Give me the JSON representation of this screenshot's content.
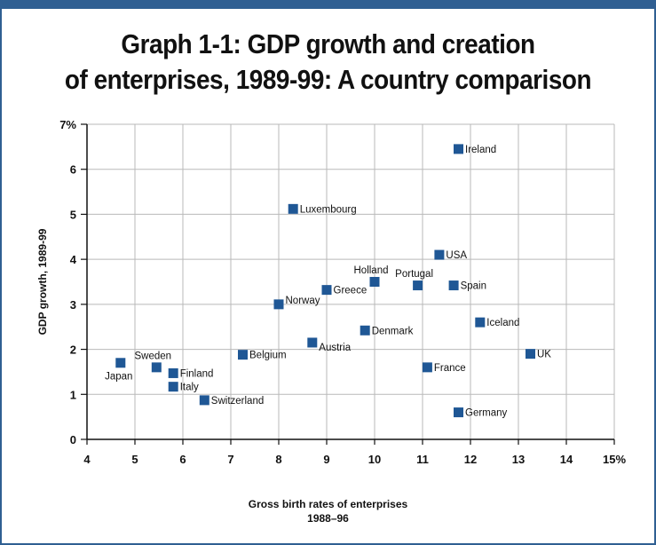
{
  "chart_data": {
    "type": "scatter",
    "title_lines": [
      "Graph 1-1: GDP growth and creation",
      "of enterprises, 1989-99: A country comparison"
    ],
    "xlabel_lines": [
      "Gross birth rates of enterprises",
      "1988–96"
    ],
    "ylabel": "GDP growth, 1989-99",
    "xlim": [
      4,
      15
    ],
    "ylim": [
      0,
      7
    ],
    "x_ticks": [
      "4",
      "5",
      "6",
      "7",
      "8",
      "9",
      "10",
      "11",
      "12",
      "13",
      "14",
      "15%"
    ],
    "y_ticks": [
      "0",
      "1",
      "2",
      "3",
      "4",
      "5",
      "6",
      "7%"
    ],
    "grid": true,
    "marker_color": "#1f5795",
    "points": [
      {
        "label": "Japan",
        "x": 4.7,
        "y": 1.7,
        "label_pos": "below"
      },
      {
        "label": "Sweden",
        "x": 5.45,
        "y": 1.6,
        "label_pos": "above"
      },
      {
        "label": "Finland",
        "x": 5.8,
        "y": 1.47,
        "label_pos": "right"
      },
      {
        "label": "Italy",
        "x": 5.8,
        "y": 1.17,
        "label_pos": "right"
      },
      {
        "label": "Switzerland",
        "x": 6.45,
        "y": 0.87,
        "label_pos": "right"
      },
      {
        "label": "Belgium",
        "x": 7.25,
        "y": 1.88,
        "label_pos": "right"
      },
      {
        "label": "Norway",
        "x": 8.0,
        "y": 3.0,
        "label_pos": "right-up"
      },
      {
        "label": "Luxembourg",
        "x": 8.3,
        "y": 5.12,
        "label_pos": "right"
      },
      {
        "label": "Austria",
        "x": 8.7,
        "y": 2.15,
        "label_pos": "right-down"
      },
      {
        "label": "Greece",
        "x": 9.0,
        "y": 3.32,
        "label_pos": "right"
      },
      {
        "label": "Denmark",
        "x": 9.8,
        "y": 2.42,
        "label_pos": "right"
      },
      {
        "label": "Holland",
        "x": 10.0,
        "y": 3.5,
        "label_pos": "above"
      },
      {
        "label": "Portugal",
        "x": 10.9,
        "y": 3.42,
        "label_pos": "above"
      },
      {
        "label": "France",
        "x": 11.1,
        "y": 1.6,
        "label_pos": "right"
      },
      {
        "label": "USA",
        "x": 11.35,
        "y": 4.1,
        "label_pos": "right"
      },
      {
        "label": "Spain",
        "x": 11.65,
        "y": 3.42,
        "label_pos": "right"
      },
      {
        "label": "Ireland",
        "x": 11.75,
        "y": 6.45,
        "label_pos": "right"
      },
      {
        "label": "Germany",
        "x": 11.75,
        "y": 0.6,
        "label_pos": "right"
      },
      {
        "label": "Iceland",
        "x": 12.2,
        "y": 2.6,
        "label_pos": "right"
      },
      {
        "label": "UK",
        "x": 13.25,
        "y": 1.9,
        "label_pos": "right"
      }
    ]
  }
}
